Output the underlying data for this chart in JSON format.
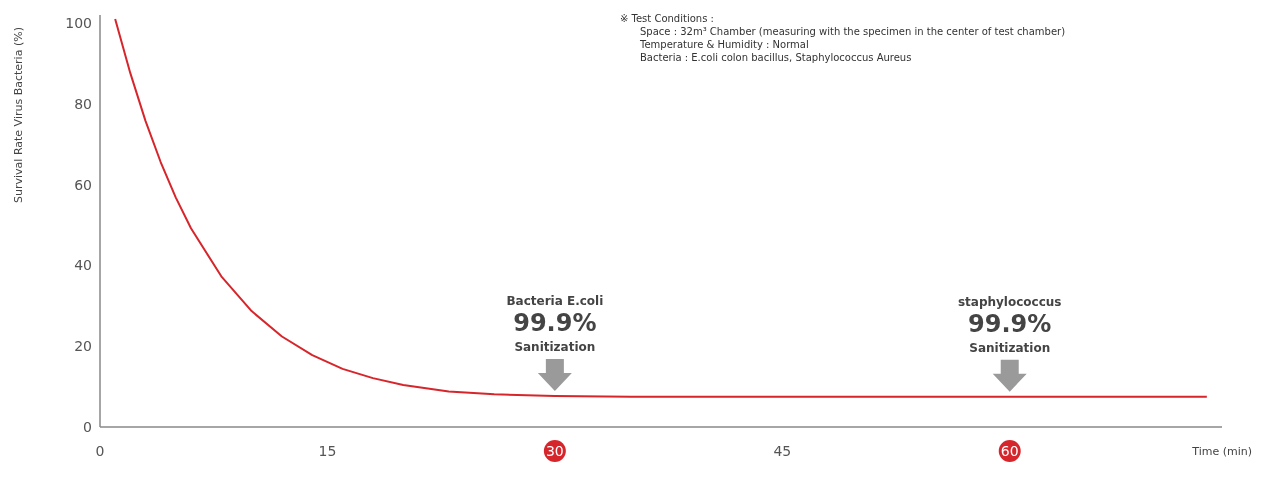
{
  "chart_data": {
    "type": "line",
    "ylabel": "Survival Rate Virus Bacteria (%)",
    "xlabel": "Time (min)",
    "x": [
      1,
      2,
      3,
      4,
      5,
      6,
      8,
      10,
      12,
      14,
      16,
      18,
      20,
      23,
      26,
      30,
      35,
      73
    ],
    "series": [
      {
        "color": "#d6262b",
        "values": [
          101,
          87.6,
          75.8,
          65.6,
          56.8,
          49.2,
          37.3,
          28.7,
          22.4,
          17.8,
          14.4,
          12.1,
          10.4,
          8.8,
          8.1,
          7.7,
          7.5,
          7.5
        ]
      }
    ],
    "xlim": [
      0,
      74
    ],
    "xticks": [
      0,
      15,
      30,
      45,
      60
    ],
    "ylim": [
      0,
      102
    ],
    "yticks": [
      0,
      20,
      40,
      60,
      80,
      100
    ],
    "grid": false,
    "marker": "none",
    "line_style": "solid",
    "annotations": [
      "※ Test Conditions :\nSpace : 32m³ Chamber (measuring with the specimen in the center of test chamber)\nTemperature & Humidity : Normal\nBacteria : E.coli colon bacillus, Staphylococcus Aureus",
      {
        "text": "Bacteria E.coli\n99.9%\nSanitization",
        "x": 30,
        "y": 7.7
      },
      {
        "text": "staphylococcus\n99.9%\nSanitization",
        "x": 60,
        "y": 7.5
      }
    ]
  }
}
